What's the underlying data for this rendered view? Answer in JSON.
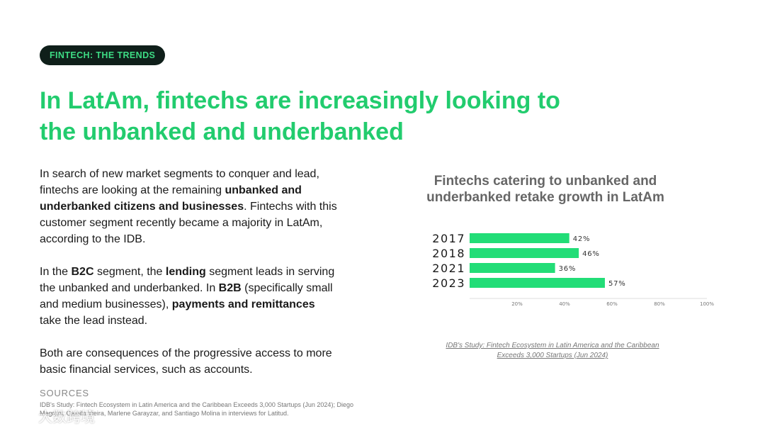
{
  "tag": "FINTECH: THE TRENDS",
  "headline": "In LatAm, fintechs are increasingly looking to the unbanked and underbanked",
  "body": {
    "p1_a": "In search of new market segments to conquer and lead, fintechs are looking at the remaining ",
    "p1_b": "unbanked and underbanked citizens and businesses",
    "p1_c": ". Fintechs with this customer segment recently became a majority in LatAm, according to the IDB.",
    "p2_a": "In the ",
    "p2_b": "B2C",
    "p2_c": " segment, the ",
    "p2_d": "lending",
    "p2_e": " segment leads in serving the unbanked and underbanked. In ",
    "p2_f": "B2B",
    "p2_g": " (specifically small and medium businesses), ",
    "p2_h": "payments and remittances",
    "p2_i": " take the lead instead.",
    "p3": "Both are consequences of the progressive access to more basic financial services, such as accounts."
  },
  "sources": {
    "label": "SOURCES",
    "text": "IDB's Study: Fintech Ecosystem in Latin America and the Caribbean Exceeds 3,000 Startups (Jun 2024); Diego Magrani, Camila Vieira, Marlene Garayzar, and Santiago Molina in interviews for Latitud."
  },
  "watermark": "大数跨境",
  "chart_data": {
    "type": "bar",
    "orientation": "horizontal",
    "title": "Fintechs catering to unbanked and underbanked retake growth in LatAm",
    "categories": [
      "2017",
      "2018",
      "2021",
      "2023"
    ],
    "values": [
      42,
      46,
      36,
      57
    ],
    "value_labels": [
      "42%",
      "46%",
      "36%",
      "57%"
    ],
    "xlim": [
      0,
      100
    ],
    "x_ticks": [
      20,
      40,
      60,
      80,
      100
    ],
    "x_tick_labels": [
      "20%",
      "40%",
      "60%",
      "80%",
      "100%"
    ],
    "bar_color": "#22dd77",
    "source": "IDB's Study: Fintech Ecosystem in Latin America and the Caribbean Exceeds 3,000 Startups (Jun 2024)"
  },
  "colors": {
    "accent": "#22cc6e",
    "tag_bg": "#0f1f1a",
    "tag_text": "#3ddc84"
  }
}
